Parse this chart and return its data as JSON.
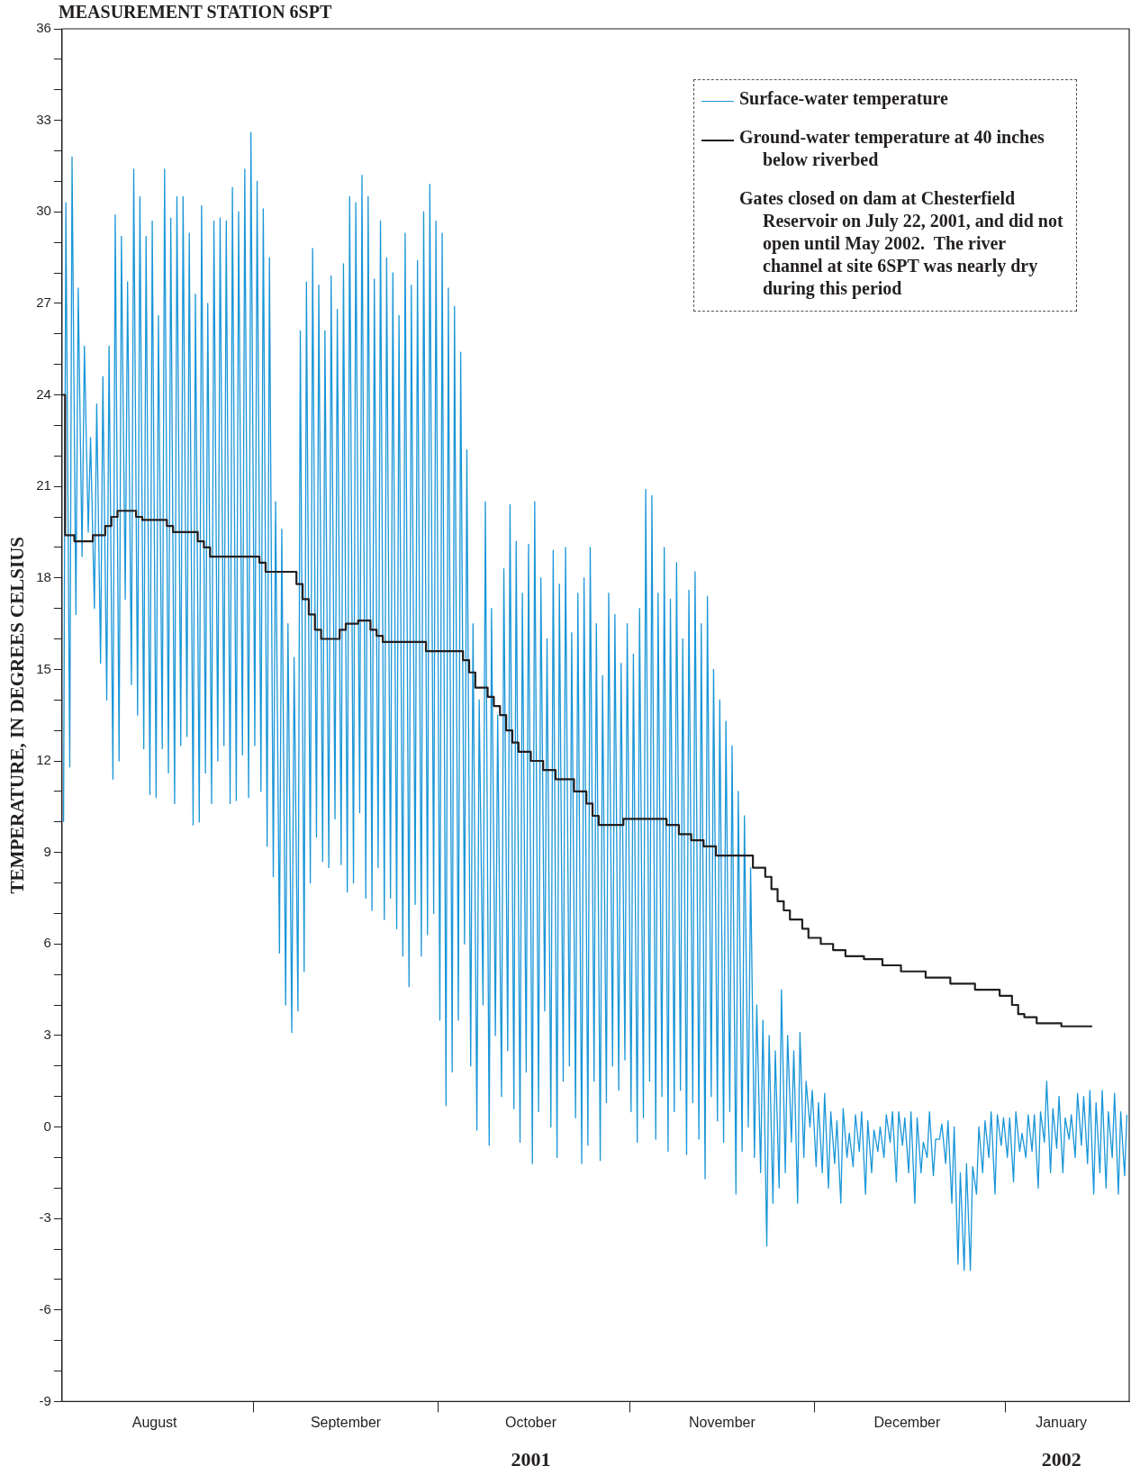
{
  "chart_data": {
    "type": "line",
    "title": "MEASUREMENT STATION 6SPT",
    "ylabel": "TEMPERATURE, IN DEGREES CELSIUS",
    "annotations": [
      "Gates closed on dam at Chesterfield Reservoir on July 22, 2001, and did not open until May 2002.  The river channel at site 6SPT was nearly dry during this period"
    ],
    "x2lim": [
      "2001-08-01",
      "2002-01-21"
    ],
    "x2ticks": [
      {
        "value": "2001-10-16",
        "label": "2001"
      },
      {
        "value": "2002-01-10",
        "label": "2002"
      }
    ],
    "xlim": [
      "2001-08-01",
      "2002-01-21"
    ],
    "xticks": [
      {
        "value": "2001-08-16",
        "label": "August"
      },
      {
        "value": "2001-09-01",
        "label": null
      },
      {
        "value": "2001-09-16",
        "label": "September"
      },
      {
        "value": "2001-10-01",
        "label": null
      },
      {
        "value": "2001-10-16",
        "label": "October"
      },
      {
        "value": "2001-11-01",
        "label": null
      },
      {
        "value": "2001-11-16",
        "label": "November"
      },
      {
        "value": "2001-12-01",
        "label": null
      },
      {
        "value": "2001-12-16",
        "label": "December"
      },
      {
        "value": "2002-01-01",
        "label": null
      },
      {
        "value": "2002-01-10",
        "label": "January"
      }
    ],
    "ylim": [
      -9,
      36
    ],
    "yticks": [
      -9,
      {
        "value": -8,
        "label": null
      },
      {
        "value": -7,
        "label": null
      },
      -6,
      {
        "value": -5,
        "label": null
      },
      {
        "value": -4,
        "label": null
      },
      -3,
      {
        "value": -2,
        "label": null
      },
      {
        "value": -1,
        "label": null
      },
      0,
      {
        "value": 1,
        "label": null
      },
      {
        "value": 2,
        "label": null
      },
      3,
      {
        "value": 4,
        "label": null
      },
      {
        "value": 5,
        "label": null
      },
      6,
      {
        "value": 7,
        "label": null
      },
      {
        "value": 8,
        "label": null
      },
      9,
      {
        "value": 10,
        "label": null
      },
      {
        "value": 11,
        "label": null
      },
      12,
      {
        "value": 13,
        "label": null
      },
      {
        "value": 14,
        "label": null
      },
      15,
      {
        "value": 16,
        "label": null
      },
      {
        "value": 17,
        "label": null
      },
      18,
      {
        "value": 19,
        "label": null
      },
      {
        "value": 20,
        "label": null
      },
      21,
      {
        "value": 22,
        "label": null
      },
      {
        "value": 23,
        "label": null
      },
      24,
      {
        "value": 25,
        "label": null
      },
      {
        "value": 26,
        "label": null
      },
      27,
      {
        "value": 28,
        "label": null
      },
      {
        "value": 29,
        "label": null
      },
      30,
      {
        "value": 31,
        "label": null
      },
      {
        "value": 32,
        "label": null
      },
      33,
      {
        "value": 34,
        "label": null
      },
      {
        "value": 35,
        "label": null
      },
      36
    ],
    "grid": false,
    "legend": "top right",
    "marker": "none",
    "series": [
      {
        "name": "Surface-water temperature",
        "color": "#1a96d8",
        "x": [
          "2001-08-01T06:00",
          "2001-08-01T15:00",
          "2001-08-02T06:00",
          "2001-08-02T15:00",
          "2001-08-03T06:00",
          "2001-08-03T15:00",
          "2001-08-04T06:00",
          "2001-08-04T15:00",
          "2001-08-05T06:00",
          "2001-08-05T15:00",
          "2001-08-06T06:00",
          "2001-08-06T15:00",
          "2001-08-07T06:00",
          "2001-08-07T15:00",
          "2001-08-08T06:00",
          "2001-08-08T15:00",
          "2001-08-09T06:00",
          "2001-08-09T15:00",
          "2001-08-10T06:00",
          "2001-08-10T15:00",
          "2001-08-11T06:00",
          "2001-08-11T15:00",
          "2001-08-12T06:00",
          "2001-08-12T15:00",
          "2001-08-13T06:00",
          "2001-08-13T15:00",
          "2001-08-14T06:00",
          "2001-08-14T15:00",
          "2001-08-15T06:00",
          "2001-08-15T15:00",
          "2001-08-16T06:00",
          "2001-08-16T15:00",
          "2001-08-17T06:00",
          "2001-08-17T15:00",
          "2001-08-18T06:00",
          "2001-08-18T15:00",
          "2001-08-19T06:00",
          "2001-08-19T15:00",
          "2001-08-20T06:00",
          "2001-08-20T15:00",
          "2001-08-21T06:00",
          "2001-08-21T15:00",
          "2001-08-22T06:00",
          "2001-08-22T15:00",
          "2001-08-23T06:00",
          "2001-08-23T15:00",
          "2001-08-24T06:00",
          "2001-08-24T15:00",
          "2001-08-25T06:00",
          "2001-08-25T15:00",
          "2001-08-26T06:00",
          "2001-08-26T15:00",
          "2001-08-27T06:00",
          "2001-08-27T15:00",
          "2001-08-28T06:00",
          "2001-08-28T15:00",
          "2001-08-29T06:00",
          "2001-08-29T15:00",
          "2001-08-30T06:00",
          "2001-08-30T15:00",
          "2001-08-31T06:00",
          "2001-08-31T15:00",
          "2001-09-01T06:00",
          "2001-09-01T15:00",
          "2001-09-02T06:00",
          "2001-09-02T15:00",
          "2001-09-03T06:00",
          "2001-09-03T15:00",
          "2001-09-04T06:00",
          "2001-09-04T15:00",
          "2001-09-05T06:00",
          "2001-09-05T15:00",
          "2001-09-06T06:00",
          "2001-09-06T15:00",
          "2001-09-07T06:00",
          "2001-09-07T15:00",
          "2001-09-08T06:00",
          "2001-09-08T15:00",
          "2001-09-09T06:00",
          "2001-09-09T15:00",
          "2001-09-10T06:00",
          "2001-09-10T15:00",
          "2001-09-11T06:00",
          "2001-09-11T15:00",
          "2001-09-12T06:00",
          "2001-09-12T15:00",
          "2001-09-13T06:00",
          "2001-09-13T15:00",
          "2001-09-14T06:00",
          "2001-09-14T15:00",
          "2001-09-15T06:00",
          "2001-09-15T15:00",
          "2001-09-16T06:00",
          "2001-09-16T15:00",
          "2001-09-17T06:00",
          "2001-09-17T15:00",
          "2001-09-18T06:00",
          "2001-09-18T15:00",
          "2001-09-19T06:00",
          "2001-09-19T15:00",
          "2001-09-20T06:00",
          "2001-09-20T15:00",
          "2001-09-21T06:00",
          "2001-09-21T15:00",
          "2001-09-22T06:00",
          "2001-09-22T15:00",
          "2001-09-23T06:00",
          "2001-09-23T15:00",
          "2001-09-24T06:00",
          "2001-09-24T15:00",
          "2001-09-25T06:00",
          "2001-09-25T15:00",
          "2001-09-26T06:00",
          "2001-09-26T15:00",
          "2001-09-27T06:00",
          "2001-09-27T15:00",
          "2001-09-28T06:00",
          "2001-09-28T15:00",
          "2001-09-29T06:00",
          "2001-09-29T15:00",
          "2001-09-30T06:00",
          "2001-09-30T15:00",
          "2001-10-01T06:00",
          "2001-10-01T15:00",
          "2001-10-02T06:00",
          "2001-10-02T15:00",
          "2001-10-03T06:00",
          "2001-10-03T15:00",
          "2001-10-04T06:00",
          "2001-10-04T15:00",
          "2001-10-05T06:00",
          "2001-10-05T15:00",
          "2001-10-06T06:00",
          "2001-10-06T15:00",
          "2001-10-07T06:00",
          "2001-10-07T15:00",
          "2001-10-08T06:00",
          "2001-10-08T15:00",
          "2001-10-09T06:00",
          "2001-10-09T15:00",
          "2001-10-10T06:00",
          "2001-10-10T15:00",
          "2001-10-11T06:00",
          "2001-10-11T15:00",
          "2001-10-12T06:00",
          "2001-10-12T15:00",
          "2001-10-13T06:00",
          "2001-10-13T15:00",
          "2001-10-14T06:00",
          "2001-10-14T15:00",
          "2001-10-15T06:00",
          "2001-10-15T15:00",
          "2001-10-16T06:00",
          "2001-10-16T15:00",
          "2001-10-17T06:00",
          "2001-10-17T15:00",
          "2001-10-18T06:00",
          "2001-10-18T15:00",
          "2001-10-19T06:00",
          "2001-10-19T15:00",
          "2001-10-20T06:00",
          "2001-10-20T15:00",
          "2001-10-21T06:00",
          "2001-10-21T15:00",
          "2001-10-22T06:00",
          "2001-10-22T15:00",
          "2001-10-23T06:00",
          "2001-10-23T15:00",
          "2001-10-24T06:00",
          "2001-10-24T15:00",
          "2001-10-25T06:00",
          "2001-10-25T15:00",
          "2001-10-26T06:00",
          "2001-10-26T15:00",
          "2001-10-27T06:00",
          "2001-10-27T15:00",
          "2001-10-28T06:00",
          "2001-10-28T15:00",
          "2001-10-29T06:00",
          "2001-10-29T15:00",
          "2001-10-30T06:00",
          "2001-10-30T15:00",
          "2001-10-31T06:00",
          "2001-10-31T15:00",
          "2001-11-01T06:00",
          "2001-11-01T15:00",
          "2001-11-02T06:00",
          "2001-11-02T15:00",
          "2001-11-03T06:00",
          "2001-11-03T15:00",
          "2001-11-04T06:00",
          "2001-11-04T15:00",
          "2001-11-05T06:00",
          "2001-11-05T15:00",
          "2001-11-06T06:00",
          "2001-11-06T15:00",
          "2001-11-07T06:00",
          "2001-11-07T15:00",
          "2001-11-08T06:00",
          "2001-11-08T15:00",
          "2001-11-09T06:00",
          "2001-11-09T15:00",
          "2001-11-10T06:00",
          "2001-11-10T15:00",
          "2001-11-11T06:00",
          "2001-11-11T15:00",
          "2001-11-12T06:00",
          "2001-11-12T15:00",
          "2001-11-13T06:00",
          "2001-11-13T15:00",
          "2001-11-14T06:00",
          "2001-11-14T15:00",
          "2001-11-15T06:00",
          "2001-11-15T15:00",
          "2001-11-16T06:00",
          "2001-11-16T15:00",
          "2001-11-17T06:00",
          "2001-11-17T15:00",
          "2001-11-18T06:00",
          "2001-11-18T15:00",
          "2001-11-19T06:00",
          "2001-11-19T15:00",
          "2001-11-20T06:00",
          "2001-11-20T15:00",
          "2001-11-21T06:00",
          "2001-11-21T15:00",
          "2001-11-22T06:00",
          "2001-11-22T15:00",
          "2001-11-23T06:00",
          "2001-11-23T15:00",
          "2001-11-24T06:00",
          "2001-11-24T15:00",
          "2001-11-25T06:00",
          "2001-11-25T15:00",
          "2001-11-26T06:00",
          "2001-11-26T15:00",
          "2001-11-27T06:00",
          "2001-11-27T15:00",
          "2001-11-28T06:00",
          "2001-11-28T15:00",
          "2001-11-29T06:00",
          "2001-11-29T15:00",
          "2001-11-30T06:00",
          "2001-11-30T15:00",
          "2001-12-01T06:00",
          "2001-12-01T15:00",
          "2001-12-02T06:00",
          "2001-12-02T15:00",
          "2001-12-03T06:00",
          "2001-12-03T15:00",
          "2001-12-04T06:00",
          "2001-12-04T15:00",
          "2001-12-05T06:00",
          "2001-12-05T15:00",
          "2001-12-06T06:00",
          "2001-12-06T15:00",
          "2001-12-07T06:00",
          "2001-12-07T15:00",
          "2001-12-08T06:00",
          "2001-12-08T15:00",
          "2001-12-09T06:00",
          "2001-12-09T15:00",
          "2001-12-10T06:00",
          "2001-12-10T15:00",
          "2001-12-11T06:00",
          "2001-12-11T15:00",
          "2001-12-12T06:00",
          "2001-12-12T15:00",
          "2001-12-13T06:00",
          "2001-12-13T15:00",
          "2001-12-14T06:00",
          "2001-12-14T15:00",
          "2001-12-15T06:00",
          "2001-12-15T15:00",
          "2001-12-16T06:00",
          "2001-12-16T15:00",
          "2001-12-17T06:00",
          "2001-12-17T15:00",
          "2001-12-18T06:00",
          "2001-12-18T15:00",
          "2001-12-19T06:00",
          "2001-12-19T15:00",
          "2001-12-20T06:00",
          "2001-12-20T15:00",
          "2001-12-21T06:00",
          "2001-12-21T15:00",
          "2001-12-22T06:00",
          "2001-12-22T15:00",
          "2001-12-23T06:00",
          "2001-12-23T15:00",
          "2001-12-24T06:00",
          "2001-12-24T15:00",
          "2001-12-25T06:00",
          "2001-12-25T15:00",
          "2001-12-26T06:00",
          "2001-12-26T15:00",
          "2001-12-27T06:00",
          "2001-12-27T15:00",
          "2001-12-28T06:00",
          "2001-12-28T15:00",
          "2001-12-29T06:00",
          "2001-12-29T15:00",
          "2001-12-30T06:00",
          "2001-12-30T15:00",
          "2001-12-31T06:00",
          "2001-12-31T15:00",
          "2002-01-01T06:00",
          "2002-01-01T15:00",
          "2002-01-02T06:00",
          "2002-01-02T15:00",
          "2002-01-03T06:00",
          "2002-01-03T15:00",
          "2002-01-04T06:00",
          "2002-01-04T15:00",
          "2002-01-05T06:00",
          "2002-01-05T15:00",
          "2002-01-06T06:00",
          "2002-01-06T15:00",
          "2002-01-07T06:00",
          "2002-01-07T15:00",
          "2002-01-08T06:00",
          "2002-01-08T15:00",
          "2002-01-09T06:00",
          "2002-01-09T15:00",
          "2002-01-10T06:00",
          "2002-01-10T15:00",
          "2002-01-11T06:00",
          "2002-01-11T15:00",
          "2002-01-12T06:00",
          "2002-01-12T15:00",
          "2002-01-13T06:00",
          "2002-01-13T15:00",
          "2002-01-14T06:00",
          "2002-01-14T15:00",
          "2002-01-15T06:00",
          "2002-01-15T15:00",
          "2002-01-16T06:00",
          "2002-01-16T15:00",
          "2002-01-17T06:00",
          "2002-01-17T15:00",
          "2002-01-18T06:00",
          "2002-01-18T15:00",
          "2002-01-19T06:00",
          "2002-01-19T15:00",
          "2002-01-20T06:00",
          "2002-01-20T15:00"
        ],
        "values": [
          10.0,
          30.3,
          11.8,
          31.8,
          16.8,
          27.5,
          18.7,
          25.6,
          19.5,
          22.6,
          17.0,
          23.7,
          15.2,
          24.6,
          14.0,
          25.6,
          11.4,
          29.9,
          12.0,
          29.2,
          17.3,
          27.7,
          14.5,
          31.4,
          13.5,
          30.5,
          12.4,
          29.2,
          10.9,
          29.7,
          10.8,
          26.6,
          12.4,
          31.4,
          11.6,
          29.8,
          10.6,
          30.5,
          12.5,
          30.5,
          12.8,
          29.3,
          9.9,
          27.3,
          10.0,
          30.2,
          11.6,
          27.0,
          10.6,
          29.7,
          12.0,
          29.8,
          12.5,
          29.7,
          10.6,
          30.8,
          10.7,
          30.0,
          12.2,
          31.4,
          10.8,
          32.6,
          12.5,
          31.0,
          11.0,
          30.1,
          9.2,
          28.5,
          8.2,
          20.5,
          5.7,
          19.6,
          4.0,
          16.5,
          3.1,
          15.4,
          3.8,
          26.1,
          5.1,
          27.7,
          8.0,
          28.8,
          9.5,
          27.6,
          8.7,
          26.1,
          8.5,
          27.9,
          10.1,
          26.8,
          8.6,
          28.3,
          7.7,
          30.5,
          8.0,
          30.3,
          10.3,
          31.2,
          7.5,
          30.5,
          7.1,
          27.8,
          8.5,
          29.7,
          6.8,
          28.5,
          7.5,
          28.0,
          6.5,
          26.6,
          5.6,
          29.3,
          4.6,
          27.6,
          7.3,
          28.4,
          5.6,
          30.0,
          6.3,
          30.9,
          7.0,
          29.7,
          3.5,
          29.3,
          0.7,
          27.5,
          1.8,
          26.9,
          3.5,
          25.4,
          6.0,
          22.2,
          2.0,
          16.5,
          -0.1,
          14.0,
          4.0,
          20.5,
          -0.6,
          17.0,
          3.0,
          13.5,
          1.0,
          18.3,
          2.5,
          20.4,
          0.6,
          19.2,
          -0.5,
          17.5,
          1.8,
          19.1,
          -1.2,
          20.5,
          0.5,
          18.0,
          3.8,
          16.0,
          0.0,
          18.9,
          -1.0,
          17.8,
          1.5,
          19.0,
          2.0,
          16.2,
          0.3,
          17.5,
          -1.2,
          18.0,
          -0.6,
          19.0,
          1.5,
          16.5,
          -1.1,
          14.8,
          0.8,
          17.5,
          2.0,
          16.8,
          1.2,
          15.2,
          2.2,
          16.5,
          0.5,
          15.5,
          -0.5,
          17.0,
          0.3,
          20.9,
          1.5,
          20.7,
          -0.4,
          17.5,
          1.0,
          19.0,
          -0.8,
          17.3,
          0.5,
          18.5,
          1.2,
          16.0,
          -0.9,
          17.6,
          0.8,
          18.2,
          -0.4,
          16.5,
          -1.7,
          17.4,
          1.0,
          15.0,
          0.2,
          14.0,
          -0.5,
          13.3,
          0.5,
          12.5,
          -2.2,
          11.0,
          -0.8,
          10.2,
          0.0,
          8.5,
          -1.0,
          4.0,
          -1.5,
          3.5,
          -3.9,
          3.0,
          -2.5,
          2.5,
          -2.0,
          4.5,
          -1.5,
          3.0,
          -0.5,
          2.5,
          -2.5,
          3.1,
          -1.0,
          1.5,
          0.0,
          1.2,
          -1.3,
          0.8,
          -1.5,
          1.1,
          -2.0,
          0.5,
          -1.2,
          0.2,
          -2.5,
          0.6,
          -1.0,
          -0.2,
          -1.3,
          0.4,
          -0.8,
          0.5,
          -2.2,
          0.2,
          -1.5,
          -0.1,
          -0.8,
          0.0,
          -1.0,
          0.4,
          -0.5,
          0.5,
          -1.8,
          0.5,
          -0.6,
          0.3,
          -1.5,
          0.5,
          -2.5,
          0.3,
          -1.5,
          -0.5,
          -1.0,
          0.5,
          -1.6,
          -0.4,
          -0.4,
          0.1,
          -1.2,
          0.2,
          -2.5,
          0.0,
          -4.5,
          -1.5,
          -4.7,
          -1.2,
          -4.7,
          -1.3,
          -2.2,
          0.0,
          -1.5,
          0.2,
          -1.0,
          0.5,
          -2.2,
          0.4,
          -0.6,
          0.3,
          -1.0,
          0.3,
          -1.8,
          0.5,
          -0.8,
          -0.2,
          -1.0,
          0.4,
          -0.8,
          0.4,
          -2.0,
          0.5,
          -0.5,
          1.5,
          -1.5,
          0.6,
          -0.7,
          1.0,
          -1.5,
          0.3,
          -0.4,
          0.4,
          -1.0,
          1.1,
          -0.6,
          1.0,
          -1.2,
          1.2,
          -2.2,
          0.8,
          -1.5,
          1.2,
          -2.0,
          0.5,
          -1.0,
          1.1,
          -2.2,
          0.5,
          -1.6,
          0.4
        ]
      },
      {
        "name": "Ground-water temperature at 40 inches below riverbed",
        "color": "#231f20",
        "type": "step",
        "x": [
          "2001-08-01T00:00",
          "2001-08-01T12:00",
          "2001-08-03",
          "2001-08-06",
          "2001-08-08",
          "2001-08-09",
          "2001-08-10",
          "2001-08-13",
          "2001-08-14",
          "2001-08-18",
          "2001-08-19",
          "2001-08-23",
          "2001-08-24",
          "2001-08-25",
          "2001-09-02",
          "2001-09-03",
          "2001-09-08",
          "2001-09-09",
          "2001-09-10",
          "2001-09-11",
          "2001-09-12",
          "2001-09-15",
          "2001-09-16",
          "2001-09-18",
          "2001-09-20",
          "2001-09-21",
          "2001-09-22",
          "2001-09-29",
          "2001-10-05",
          "2001-10-06",
          "2001-10-07",
          "2001-10-09",
          "2001-10-10",
          "2001-10-11",
          "2001-10-12",
          "2001-10-13",
          "2001-10-14",
          "2001-10-16",
          "2001-10-18",
          "2001-10-20",
          "2001-10-23",
          "2001-10-25",
          "2001-10-26",
          "2001-10-27",
          "2001-10-31",
          "2001-11-07",
          "2001-11-09",
          "2001-11-11",
          "2001-11-13",
          "2001-11-15",
          "2001-11-21",
          "2001-11-23",
          "2001-11-24",
          "2001-11-25",
          "2001-11-26",
          "2001-11-27",
          "2001-11-29",
          "2001-11-30",
          "2001-12-02",
          "2001-12-04",
          "2001-12-06",
          "2001-12-09",
          "2001-12-12",
          "2001-12-15",
          "2001-12-19",
          "2001-12-23",
          "2001-12-27",
          "2001-12-31",
          "2002-01-02",
          "2002-01-03",
          "2002-01-04",
          "2002-01-06",
          "2002-01-10",
          "2002-01-15"
        ],
        "values": [
          24.0,
          19.4,
          19.2,
          19.4,
          19.7,
          20.0,
          20.2,
          20.0,
          19.9,
          19.7,
          19.5,
          19.2,
          19.0,
          18.7,
          18.5,
          18.2,
          17.8,
          17.3,
          16.8,
          16.3,
          16.0,
          16.3,
          16.5,
          16.6,
          16.3,
          16.1,
          15.9,
          15.6,
          15.3,
          14.9,
          14.4,
          14.1,
          13.8,
          13.5,
          13.0,
          12.6,
          12.3,
          12.0,
          11.7,
          11.4,
          11.0,
          10.6,
          10.2,
          9.9,
          10.1,
          9.9,
          9.6,
          9.4,
          9.2,
          8.9,
          8.5,
          8.2,
          7.8,
          7.4,
          7.1,
          6.8,
          6.5,
          6.2,
          6.0,
          5.8,
          5.6,
          5.5,
          5.3,
          5.1,
          4.9,
          4.7,
          4.5,
          4.3,
          4.0,
          3.7,
          3.6,
          3.4,
          3.3,
          3.3
        ]
      }
    ]
  }
}
